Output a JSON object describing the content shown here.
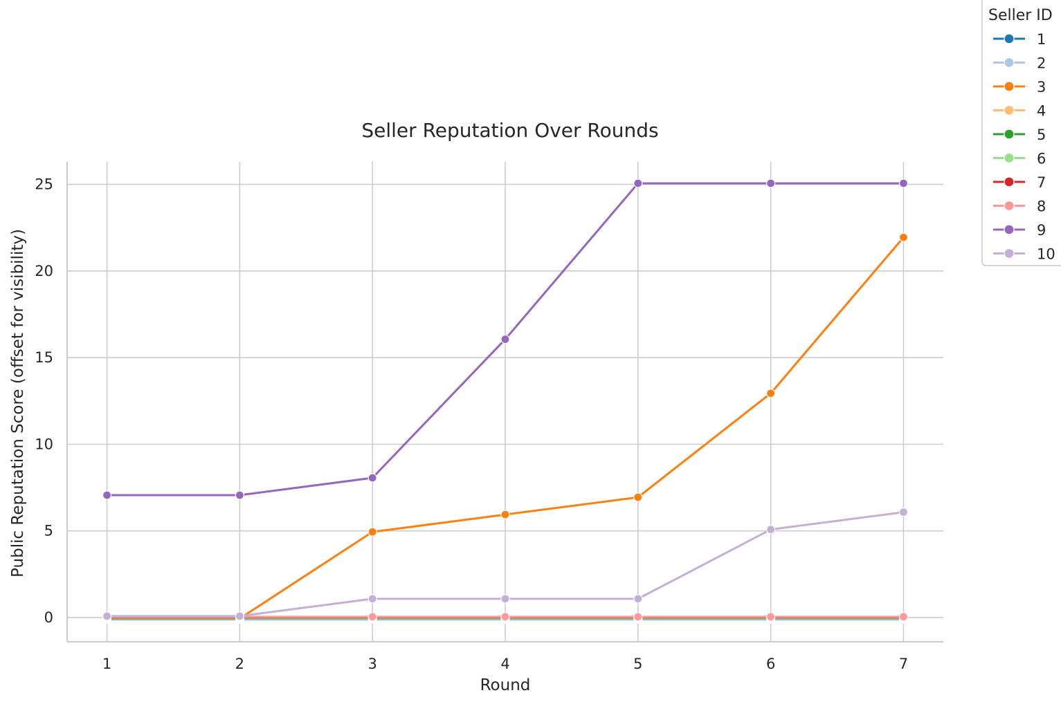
{
  "chart_data": {
    "type": "line",
    "title": "Seller Reputation Over Rounds",
    "xlabel": "Round",
    "ylabel": "Public Reputation Score (offset for visibility)",
    "x": [
      1,
      2,
      3,
      4,
      5,
      6,
      7
    ],
    "x_ticks": [
      "1",
      "2",
      "3",
      "4",
      "5",
      "6",
      "7"
    ],
    "y_ticks": [
      "0",
      "5",
      "10",
      "15",
      "20",
      "25"
    ],
    "xlim": [
      0.7,
      7.3
    ],
    "ylim": [
      -1.4,
      26.3
    ],
    "grid": true,
    "legend": {
      "title": "Seller ID",
      "placement": "outside top-right"
    },
    "series": [
      {
        "name": "1",
        "color": "#1f77b4",
        "values": [
          -0.1,
          -0.1,
          -0.1,
          -0.1,
          -0.1,
          -0.1,
          -0.1
        ]
      },
      {
        "name": "2",
        "color": "#aec7e8",
        "values": [
          -0.08,
          -0.08,
          -0.08,
          -0.08,
          -0.08,
          -0.08,
          -0.08
        ]
      },
      {
        "name": "3",
        "color": "#ff7f0e",
        "values": [
          -0.06,
          -0.06,
          4.94,
          5.94,
          6.94,
          12.94,
          21.94
        ]
      },
      {
        "name": "4",
        "color": "#ffbb78",
        "values": [
          -0.04,
          -0.04,
          -0.04,
          -0.04,
          -0.04,
          -0.04,
          -0.04
        ]
      },
      {
        "name": "5",
        "color": "#2ca02c",
        "values": [
          -0.02,
          -0.02,
          -0.02,
          -0.02,
          -0.02,
          -0.02,
          -0.02
        ]
      },
      {
        "name": "6",
        "color": "#98df8a",
        "values": [
          0.0,
          0.0,
          0.0,
          0.0,
          0.0,
          0.0,
          0.0
        ]
      },
      {
        "name": "7",
        "color": "#d62728",
        "values": [
          0.02,
          0.02,
          0.02,
          0.02,
          0.02,
          0.02,
          0.02
        ]
      },
      {
        "name": "8",
        "color": "#ff9896",
        "values": [
          0.04,
          0.04,
          0.04,
          0.04,
          0.04,
          0.04,
          0.04
        ]
      },
      {
        "name": "9",
        "color": "#9467bd",
        "values": [
          7.06,
          7.06,
          8.06,
          16.06,
          25.06,
          25.06,
          25.06
        ]
      },
      {
        "name": "10",
        "color": "#c5b0d5",
        "values": [
          0.08,
          0.08,
          1.08,
          1.08,
          1.08,
          5.08,
          6.08
        ]
      }
    ]
  }
}
